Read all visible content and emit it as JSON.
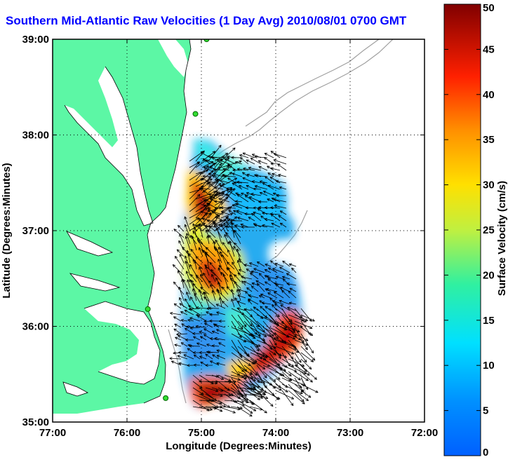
{
  "title": "Southern Mid-Atlantic Raw Velocities (1 Day Avg) 2010/08/01 0700 GMT",
  "axes": {
    "xlabel": "Longitude (Degrees:Minutes)",
    "ylabel": "Latitude (Degrees:Minutes)",
    "x_ticks": [
      "77:00",
      "76:00",
      "75:00",
      "74:00",
      "73:00",
      "72:00"
    ],
    "y_ticks": [
      "39:00",
      "38:00",
      "37:00",
      "36:00",
      "35:00"
    ],
    "xlim": [
      -77,
      -72
    ],
    "ylim": [
      35,
      39
    ],
    "grid": "dotted"
  },
  "colorbar": {
    "label": "Surface Velocity (cm/s)",
    "ticks": [
      "0",
      "5",
      "10",
      "15",
      "20",
      "25",
      "30",
      "35",
      "40",
      "45",
      "50"
    ],
    "range": [
      0,
      50
    ],
    "colormap": "jet"
  },
  "colors": {
    "land": "#5cf7a5",
    "water": "#ffffff",
    "title": "#0000ff",
    "bathymetry": "#a0a0a0",
    "station": "#33dd33"
  },
  "stations": [
    {
      "lon": -74.93,
      "lat": 39.0
    },
    {
      "lon": -75.08,
      "lat": 38.22
    },
    {
      "lon": -75.72,
      "lat": 36.18
    },
    {
      "lon": -75.48,
      "lat": 35.25
    }
  ]
}
